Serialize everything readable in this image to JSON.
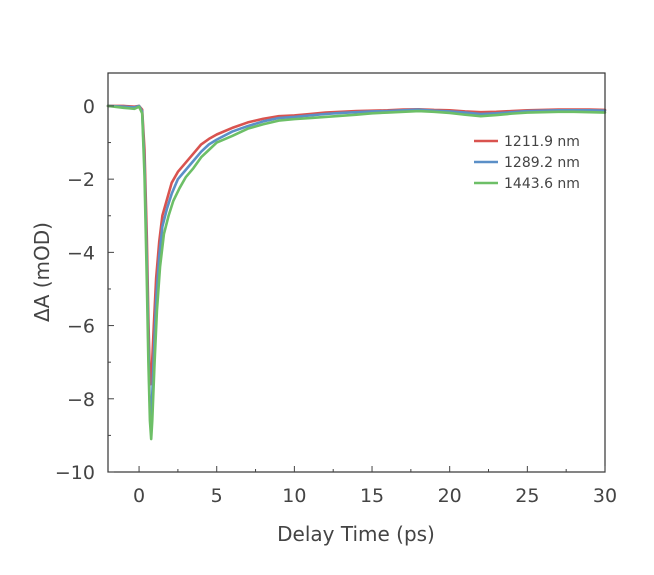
{
  "chart_data": {
    "type": "line",
    "title": "",
    "xlabel": "Delay Time (ps)",
    "ylabel": "ΔA (mOD)",
    "xlim": [
      -2,
      30
    ],
    "ylim": [
      -10,
      0.9
    ],
    "x_ticks": [
      0,
      5,
      10,
      15,
      20,
      25,
      30
    ],
    "x_tick_labels": [
      "0",
      "5",
      "10",
      "15",
      "20",
      "25",
      "30"
    ],
    "y_ticks": [
      0,
      -2,
      -4,
      -6,
      -8,
      -10
    ],
    "y_tick_labels": [
      "0",
      "−2",
      "−4",
      "−6",
      "−8",
      "−10"
    ],
    "grid": false,
    "legend": "top-right",
    "series": [
      {
        "name": "1211.9 nm",
        "color": "#d9534f",
        "points": [
          [
            -2,
            0
          ],
          [
            -1,
            0
          ],
          [
            -0.3,
            -0.02
          ],
          [
            0,
            0
          ],
          [
            0.2,
            -0.1
          ],
          [
            0.35,
            -1.2
          ],
          [
            0.5,
            -3.6
          ],
          [
            0.6,
            -5.8
          ],
          [
            0.68,
            -7.2
          ],
          [
            0.75,
            -7.6
          ],
          [
            0.82,
            -7.2
          ],
          [
            0.95,
            -6.0
          ],
          [
            1.1,
            -4.7
          ],
          [
            1.3,
            -3.7
          ],
          [
            1.5,
            -3.0
          ],
          [
            1.8,
            -2.55
          ],
          [
            2.1,
            -2.1
          ],
          [
            2.5,
            -1.8
          ],
          [
            3,
            -1.55
          ],
          [
            3.5,
            -1.3
          ],
          [
            4,
            -1.05
          ],
          [
            4.5,
            -0.9
          ],
          [
            5,
            -0.78
          ],
          [
            6,
            -0.6
          ],
          [
            7,
            -0.45
          ],
          [
            8,
            -0.35
          ],
          [
            9,
            -0.28
          ],
          [
            10,
            -0.26
          ],
          [
            11,
            -0.22
          ],
          [
            12,
            -0.18
          ],
          [
            13,
            -0.16
          ],
          [
            14,
            -0.14
          ],
          [
            15,
            -0.13
          ],
          [
            16,
            -0.12
          ],
          [
            17,
            -0.1
          ],
          [
            18,
            -0.09
          ],
          [
            19,
            -0.11
          ],
          [
            20,
            -0.12
          ],
          [
            21,
            -0.15
          ],
          [
            22,
            -0.17
          ],
          [
            23,
            -0.16
          ],
          [
            24,
            -0.14
          ],
          [
            25,
            -0.12
          ],
          [
            26,
            -0.11
          ],
          [
            27,
            -0.1
          ],
          [
            28,
            -0.1
          ],
          [
            29,
            -0.1
          ],
          [
            30,
            -0.11
          ]
        ]
      },
      {
        "name": "1289.2 nm",
        "color": "#5b8fc7",
        "points": [
          [
            -2,
            0
          ],
          [
            -1,
            -0.02
          ],
          [
            -0.3,
            -0.04
          ],
          [
            0,
            0
          ],
          [
            0.2,
            -0.15
          ],
          [
            0.35,
            -1.6
          ],
          [
            0.5,
            -4.3
          ],
          [
            0.6,
            -6.5
          ],
          [
            0.68,
            -8.0
          ],
          [
            0.75,
            -8.6
          ],
          [
            0.82,
            -8.2
          ],
          [
            0.95,
            -6.8
          ],
          [
            1.1,
            -5.3
          ],
          [
            1.3,
            -4.1
          ],
          [
            1.5,
            -3.3
          ],
          [
            1.8,
            -2.8
          ],
          [
            2.1,
            -2.4
          ],
          [
            2.5,
            -2.0
          ],
          [
            3,
            -1.75
          ],
          [
            3.5,
            -1.5
          ],
          [
            4,
            -1.25
          ],
          [
            4.5,
            -1.05
          ],
          [
            5,
            -0.92
          ],
          [
            6,
            -0.7
          ],
          [
            7,
            -0.55
          ],
          [
            8,
            -0.42
          ],
          [
            9,
            -0.33
          ],
          [
            10,
            -0.3
          ],
          [
            11,
            -0.26
          ],
          [
            12,
            -0.22
          ],
          [
            13,
            -0.19
          ],
          [
            14,
            -0.17
          ],
          [
            15,
            -0.15
          ],
          [
            16,
            -0.14
          ],
          [
            17,
            -0.12
          ],
          [
            18,
            -0.1
          ],
          [
            19,
            -0.13
          ],
          [
            20,
            -0.15
          ],
          [
            21,
            -0.18
          ],
          [
            22,
            -0.22
          ],
          [
            23,
            -0.2
          ],
          [
            24,
            -0.17
          ],
          [
            25,
            -0.14
          ],
          [
            26,
            -0.13
          ],
          [
            27,
            -0.12
          ],
          [
            28,
            -0.12
          ],
          [
            29,
            -0.12
          ],
          [
            30,
            -0.13
          ]
        ]
      },
      {
        "name": "1443.6 nm",
        "color": "#6dbf67",
        "points": [
          [
            -2,
            0
          ],
          [
            -1,
            -0.05
          ],
          [
            -0.3,
            -0.08
          ],
          [
            0,
            -0.02
          ],
          [
            0.2,
            -0.2
          ],
          [
            0.35,
            -1.9
          ],
          [
            0.5,
            -4.8
          ],
          [
            0.6,
            -7.0
          ],
          [
            0.7,
            -8.6
          ],
          [
            0.78,
            -9.1
          ],
          [
            0.85,
            -8.6
          ],
          [
            1.0,
            -7.0
          ],
          [
            1.15,
            -5.6
          ],
          [
            1.35,
            -4.4
          ],
          [
            1.6,
            -3.5
          ],
          [
            1.9,
            -3.0
          ],
          [
            2.2,
            -2.6
          ],
          [
            2.6,
            -2.25
          ],
          [
            3,
            -1.95
          ],
          [
            3.5,
            -1.7
          ],
          [
            4,
            -1.4
          ],
          [
            4.5,
            -1.2
          ],
          [
            5,
            -1.0
          ],
          [
            6,
            -0.82
          ],
          [
            7,
            -0.62
          ],
          [
            8,
            -0.5
          ],
          [
            9,
            -0.4
          ],
          [
            10,
            -0.36
          ],
          [
            11,
            -0.33
          ],
          [
            12,
            -0.3
          ],
          [
            13,
            -0.27
          ],
          [
            14,
            -0.24
          ],
          [
            15,
            -0.2
          ],
          [
            16,
            -0.18
          ],
          [
            17,
            -0.16
          ],
          [
            18,
            -0.14
          ],
          [
            19,
            -0.16
          ],
          [
            20,
            -0.19
          ],
          [
            21,
            -0.24
          ],
          [
            22,
            -0.28
          ],
          [
            23,
            -0.25
          ],
          [
            24,
            -0.21
          ],
          [
            25,
            -0.18
          ],
          [
            26,
            -0.17
          ],
          [
            27,
            -0.16
          ],
          [
            28,
            -0.16
          ],
          [
            29,
            -0.17
          ],
          [
            30,
            -0.18
          ]
        ]
      }
    ]
  }
}
